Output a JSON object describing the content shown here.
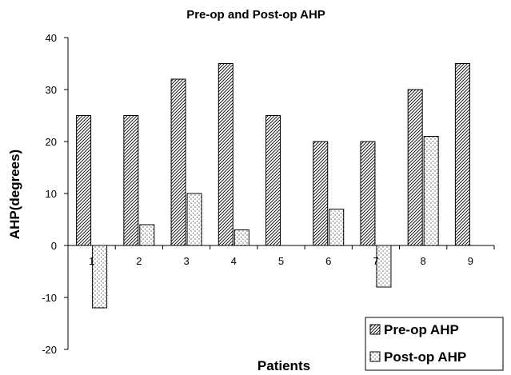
{
  "chart_data": {
    "type": "bar",
    "title": "Pre-op and Post-op AHP",
    "xlabel": "Patients",
    "ylabel": "AHP(degrees)",
    "categories": [
      "1",
      "2",
      "3",
      "4",
      "5",
      "6",
      "7",
      "8",
      "9"
    ],
    "series": [
      {
        "name": "Pre-op AHP",
        "values": [
          25,
          25,
          32,
          35,
          25,
          20,
          20,
          30,
          35
        ],
        "pattern": "diagonal-hatch"
      },
      {
        "name": "Post-op AHP",
        "values": [
          -12,
          4,
          10,
          3,
          0,
          7,
          -8,
          21,
          0
        ],
        "pattern": "dots"
      }
    ],
    "ylim": [
      -20,
      40
    ],
    "yticks": [
      "-20",
      "-10",
      "0",
      "10",
      "20",
      "30",
      "40"
    ],
    "grid": false,
    "legend_position": "bottom-right",
    "colors": {
      "stroke": "#000000",
      "fill": "#ffffff"
    }
  }
}
